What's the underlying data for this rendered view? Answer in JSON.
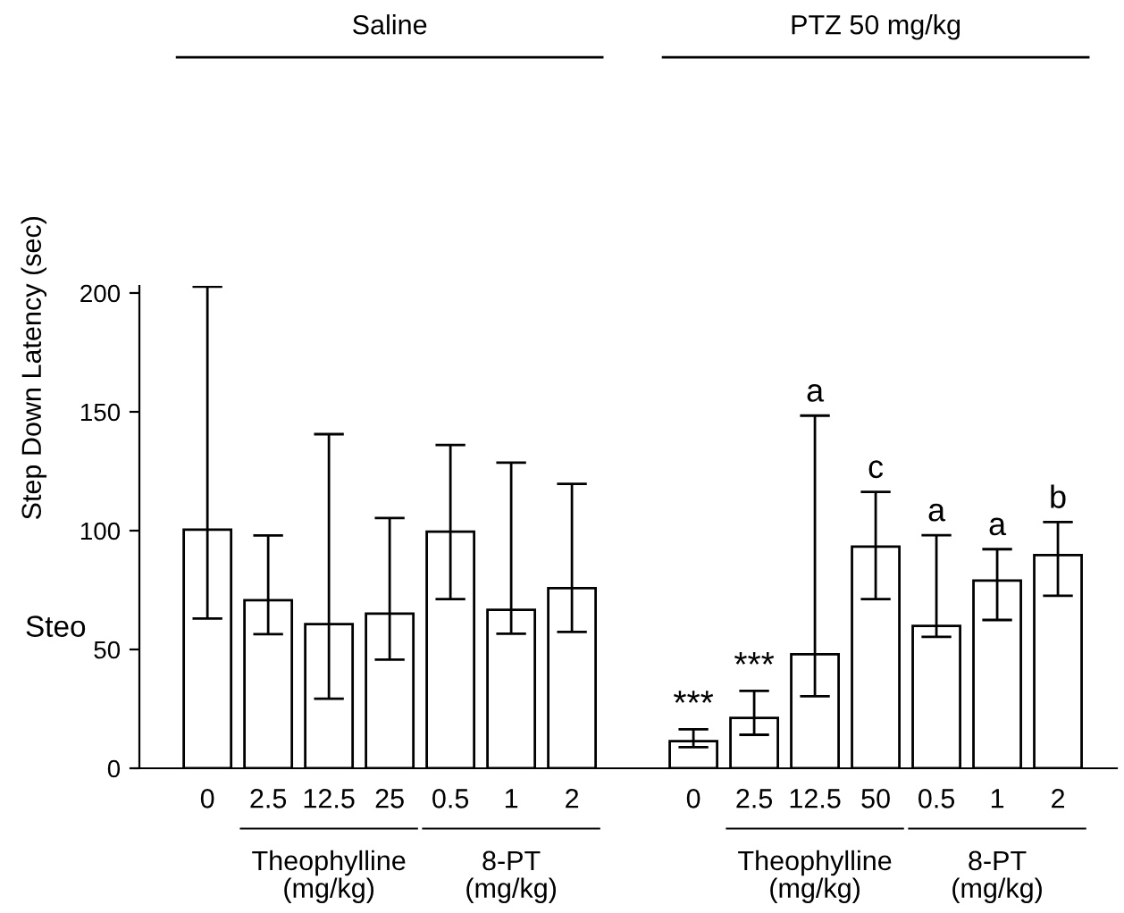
{
  "chart_data": {
    "type": "bar",
    "ylabel": "Step Down Latency (sec)",
    "categories": [
      "0",
      "2.5",
      "12.5",
      "25",
      "0.5",
      "1",
      "2",
      null,
      "0",
      "2.5",
      "12.5",
      "50",
      "0.5",
      "1",
      "2"
    ],
    "values": [
      100.4,
      70.7,
      60.7,
      65.1,
      99.6,
      66.7,
      75.8,
      null,
      11.4,
      21.2,
      48,
      93.3,
      59.9,
      79,
      89.7
    ],
    "errors": [
      [
        63,
        202.7
      ],
      [
        56.4,
        98
      ],
      [
        29.3,
        140.6
      ],
      [
        45.7,
        105.3
      ],
      [
        71.2,
        136
      ],
      [
        56.6,
        128.6
      ],
      [
        57.4,
        119.7
      ],
      null,
      [
        8.9,
        16.4
      ],
      [
        14.1,
        32.6
      ],
      [
        30.3,
        148.4
      ],
      [
        71.2,
        116.3
      ],
      [
        55.3,
        98.1
      ],
      [
        62.4,
        92.2
      ],
      [
        72.6,
        103.6
      ]
    ],
    "color": "#ffffff",
    "ylim": [
      0,
      203
    ],
    "yticks": [
      0,
      50,
      100,
      150,
      200
    ],
    "grid": false,
    "legend": false,
    "annotations": [
      "***",
      "***",
      "a",
      "c",
      "a",
      "a",
      "b",
      "Saline",
      "PTZ 50 mg/kg",
      "Theophylline\n(mg/kg)",
      "8-PT\n(mg/kg)",
      "Theophylline\n(mg/kg)",
      "8-PT\n(mg/kg)",
      "Steo"
    ]
  }
}
